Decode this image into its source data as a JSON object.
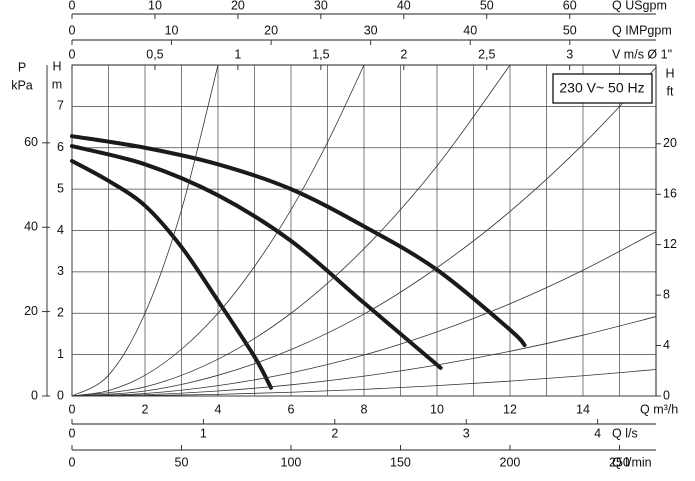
{
  "chart_data": {
    "type": "line",
    "annotation": "230 V~ 50 Hz",
    "xlabel": "Q m³/h",
    "xlim": [
      0,
      16
    ],
    "xticks": [
      0,
      2,
      4,
      6,
      8,
      10,
      12,
      14
    ],
    "x_minor_ticks": [
      1,
      3,
      5,
      7,
      9,
      11,
      13,
      15
    ],
    "ylabel": [
      "H",
      "m"
    ],
    "ylim": [
      0,
      8
    ],
    "yticks": [
      0,
      1,
      2,
      3,
      4,
      5,
      6,
      7
    ],
    "grid": true,
    "extra_axes": [
      {
        "label": "Q USgpm",
        "position": "top",
        "lim": [
          0,
          70.4
        ],
        "ticks": [
          0,
          10,
          20,
          30,
          40,
          50,
          60
        ]
      },
      {
        "label": "Q IMPgpm",
        "position": "top",
        "lim": [
          0,
          58.66
        ],
        "ticks": [
          0,
          10,
          20,
          30,
          40,
          50
        ]
      },
      {
        "label": "V m/s Ø 1\"",
        "position": "top",
        "lim": [
          0,
          3.52
        ],
        "ticks": [
          0,
          {
            "value": 0.5,
            "label": "0,5"
          },
          1,
          {
            "value": 1.5,
            "label": "1,5"
          },
          2,
          {
            "value": 2.5,
            "label": "2,5"
          },
          3
        ]
      },
      {
        "label": "Q l/s",
        "position": "bottom",
        "lim": [
          0,
          4.444
        ],
        "ticks": [
          0,
          1,
          2,
          3,
          4
        ]
      },
      {
        "label": "Q l/min",
        "position": "bottom",
        "lim": [
          0,
          266.7
        ],
        "ticks": [
          0,
          50,
          100,
          150,
          200,
          250
        ]
      },
      {
        "label": [
          "P",
          "kPa"
        ],
        "position": "left",
        "lim": [
          0,
          78.45
        ],
        "ticks": [
          0,
          20,
          40,
          60
        ]
      },
      {
        "label": [
          "H",
          "ft"
        ],
        "position": "right",
        "lim": [
          0,
          26.25
        ],
        "ticks": [
          0,
          4,
          8,
          12,
          16,
          20
        ]
      }
    ],
    "series": [
      {
        "color": "#1a1a1a",
        "linewidth": 4,
        "x": [
          0,
          1,
          2,
          3,
          4,
          5,
          5.45
        ],
        "values": [
          5.68,
          5.2,
          4.6,
          3.6,
          2.3,
          0.95,
          0.2
        ]
      },
      {
        "color": "#1a1a1a",
        "linewidth": 4,
        "x": [
          0,
          2,
          4,
          6,
          8,
          10.1
        ],
        "values": [
          6.04,
          5.6,
          4.85,
          3.75,
          2.25,
          0.68
        ]
      },
      {
        "color": "#1a1a1a",
        "linewidth": 4,
        "x": [
          0,
          2,
          4,
          6,
          8,
          10,
          12,
          12.4
        ],
        "values": [
          6.28,
          6.0,
          5.6,
          5.0,
          4.1,
          3.05,
          1.6,
          1.23
        ]
      },
      {
        "color": "#333333",
        "linewidth": 0.8,
        "x": [
          0,
          1,
          2,
          3,
          4
        ],
        "values": [
          0,
          0.5,
          2,
          4.5,
          8
        ]
      },
      {
        "color": "#333333",
        "linewidth": 0.8,
        "x": [
          0,
          1,
          2,
          3,
          4,
          5,
          6,
          7,
          8
        ],
        "values": [
          0,
          0.13,
          0.5,
          1.13,
          2,
          3.13,
          4.5,
          6.13,
          8
        ]
      },
      {
        "color": "#333333",
        "linewidth": 0.8,
        "x": [
          0,
          2,
          4,
          6,
          8,
          10,
          12
        ],
        "values": [
          0,
          0.22,
          0.89,
          2,
          3.56,
          5.56,
          8
        ]
      },
      {
        "color": "#333333",
        "linewidth": 0.8,
        "x": [
          0,
          2,
          4,
          6,
          8,
          10,
          12,
          14,
          16
        ],
        "values": [
          0,
          0.12,
          0.5,
          1.12,
          1.98,
          3.1,
          4.46,
          6.08,
          7.94
        ]
      },
      {
        "color": "#333333",
        "linewidth": 0.8,
        "x": [
          0,
          2,
          4,
          6,
          8,
          10,
          12,
          14,
          16
        ],
        "values": [
          0,
          0.06,
          0.25,
          0.56,
          0.99,
          1.55,
          2.23,
          3.04,
          3.97
        ]
      },
      {
        "color": "#333333",
        "linewidth": 0.8,
        "x": [
          0,
          2,
          4,
          6,
          8,
          10,
          12,
          14,
          16
        ],
        "values": [
          0,
          0.03,
          0.12,
          0.27,
          0.48,
          0.75,
          1.08,
          1.47,
          1.92
        ]
      },
      {
        "color": "#333333",
        "linewidth": 0.8,
        "x": [
          0,
          2,
          4,
          6,
          8,
          10,
          12,
          14,
          16
        ],
        "values": [
          0,
          0.01,
          0.04,
          0.09,
          0.16,
          0.25,
          0.36,
          0.49,
          0.64
        ]
      }
    ]
  }
}
